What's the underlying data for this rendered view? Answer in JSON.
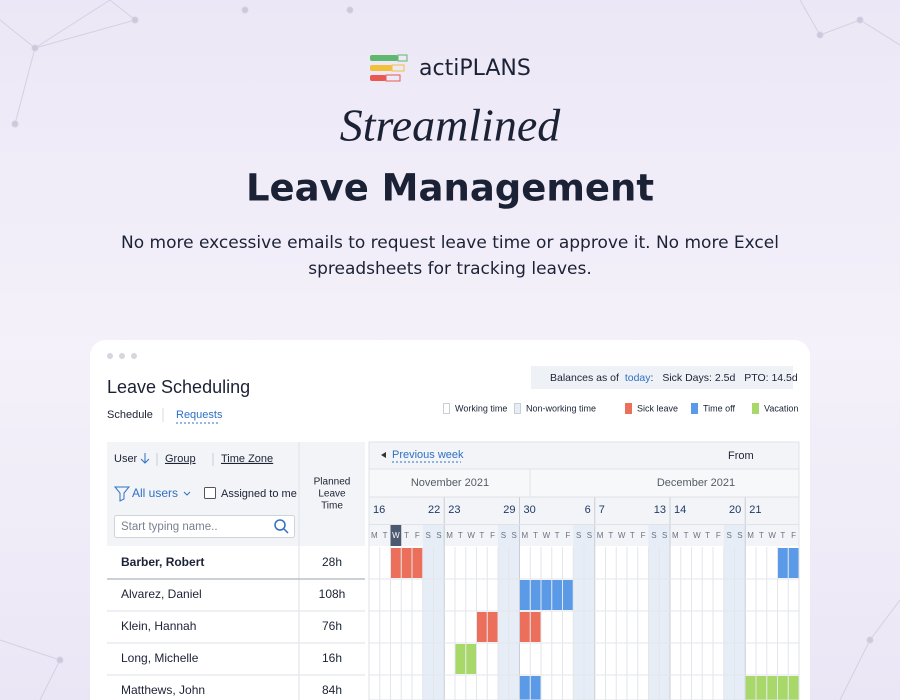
{
  "brand": "actiPLANS",
  "hero": {
    "kicker": "Streamlined",
    "title": "Leave Management",
    "lines": [
      "No more excessive emails to request leave time or approve it. No more Excel",
      "spreadsheets for tracking leaves."
    ]
  },
  "app": {
    "title": "Leave Scheduling",
    "tabs": [
      "Schedule",
      "Requests"
    ],
    "balances": {
      "label": "Balances as of",
      "link": "today",
      "separator": ":",
      "sick": "Sick Days: 2.5d",
      "pto": "PTO: 14.5d"
    },
    "legend": [
      {
        "label": "Working time",
        "color": "#ffffff"
      },
      {
        "label": "Non-working time",
        "color": "#e6edf6"
      },
      {
        "label": "Sick leave",
        "color": "#ec6f5b"
      },
      {
        "label": "Time off",
        "color": "#5b9ae6"
      },
      {
        "label": "Vacation",
        "color": "#a8d86a"
      }
    ],
    "table": {
      "columns": [
        "User",
        "Group",
        "Time Zone"
      ],
      "filter": "All users",
      "assigned": "Assigned to me",
      "search_placeholder": "Start typing name..",
      "planned_header": [
        "Planned",
        "Leave",
        "Time"
      ],
      "rows": [
        [
          "Barber, Robert",
          "28h"
        ],
        [
          "Alvarez, Daniel",
          "108h"
        ],
        [
          "Klein, Hannah",
          "76h"
        ],
        [
          "Long, Michelle",
          "16h"
        ],
        [
          "Matthews, John",
          "84h"
        ]
      ]
    },
    "calendar": {
      "prev": "Previous week",
      "from": "From",
      "months": [
        "November 2021",
        "December 2021"
      ],
      "weeks": [
        [
          "16",
          "22"
        ],
        [
          "23",
          "29"
        ],
        [
          "30",
          "6"
        ],
        [
          "7",
          "13"
        ],
        [
          "14",
          "20"
        ],
        [
          "21"
        ]
      ],
      "day_letters": [
        "M",
        "T",
        "W",
        "T",
        "F",
        "S",
        "S"
      ]
    }
  }
}
